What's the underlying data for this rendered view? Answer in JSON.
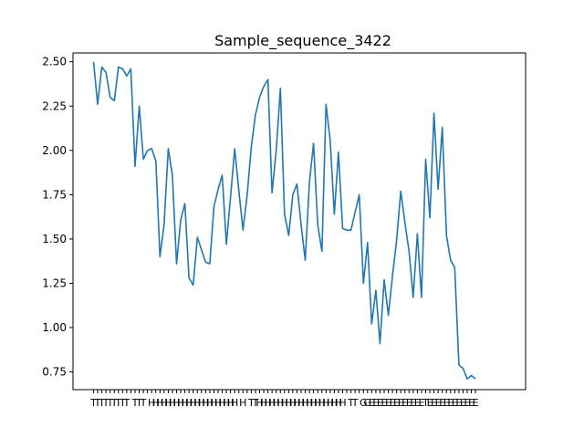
{
  "chart_data": {
    "type": "line",
    "title": "Sample_sequence_3422",
    "xlabel": "",
    "ylabel": "",
    "ylim": [
      0.65,
      2.55
    ],
    "grid": false,
    "y_ticks": [
      "0.75",
      "1.00",
      "1.25",
      "1.50",
      "1.75",
      "2.00",
      "2.25",
      "2.50"
    ],
    "x_tick_labels": [
      "T",
      "T",
      "T",
      "T",
      "T",
      "T",
      "T",
      "T",
      "T",
      "",
      "T",
      "T",
      "T",
      "",
      "H",
      "H",
      "H",
      "H",
      "H",
      "H",
      "H",
      "H",
      "H",
      "H",
      "H",
      "H",
      "H",
      "H",
      "H",
      "H",
      "H",
      "H",
      "H",
      "H",
      "H",
      "",
      "H",
      "",
      "T",
      "T",
      "H",
      "H",
      "H",
      "H",
      "H",
      "H",
      "H",
      "H",
      "H",
      "H",
      "H",
      "H",
      "H",
      "H",
      "H",
      "H",
      "H",
      "H",
      "H",
      "H",
      "H",
      "",
      "T",
      "T",
      "",
      "G",
      "G",
      "E",
      "E",
      "E",
      "E",
      "E",
      "E",
      "E",
      "E",
      "E",
      "E",
      "E",
      "E",
      "E",
      "T",
      "E",
      "E",
      "E",
      "E",
      "E",
      "E",
      "E",
      "E",
      "E",
      "E",
      "E",
      "E",
      "",
      "",
      "",
      "",
      "",
      "",
      "",
      "",
      "",
      ""
    ],
    "series": [
      {
        "color": "#1f77b4",
        "values": [
          2.5,
          2.26,
          2.47,
          2.44,
          2.3,
          2.28,
          2.47,
          2.46,
          2.42,
          2.46,
          1.91,
          2.25,
          1.95,
          2.0,
          2.01,
          1.94,
          1.4,
          1.58,
          2.01,
          1.86,
          1.36,
          1.61,
          1.7,
          1.28,
          1.24,
          1.51,
          1.44,
          1.37,
          1.36,
          1.68,
          1.78,
          1.86,
          1.47,
          1.74,
          2.01,
          1.77,
          1.55,
          1.75,
          2.02,
          2.2,
          2.3,
          2.36,
          2.4,
          1.76,
          2.0,
          2.35,
          1.64,
          1.52,
          1.75,
          1.81,
          1.58,
          1.38,
          1.82,
          2.04,
          1.58,
          1.43,
          2.26,
          2.06,
          1.64,
          1.99,
          1.56,
          1.55,
          1.55,
          1.65,
          1.75,
          1.25,
          1.48,
          1.02,
          1.21,
          0.91,
          1.27,
          1.07,
          1.29,
          1.49,
          1.77,
          1.59,
          1.43,
          1.17,
          1.53,
          1.17,
          1.95,
          1.62,
          2.21,
          1.78,
          2.13,
          1.52,
          1.38,
          1.34,
          0.79,
          0.77,
          0.71,
          0.73,
          0.71
        ]
      }
    ]
  }
}
